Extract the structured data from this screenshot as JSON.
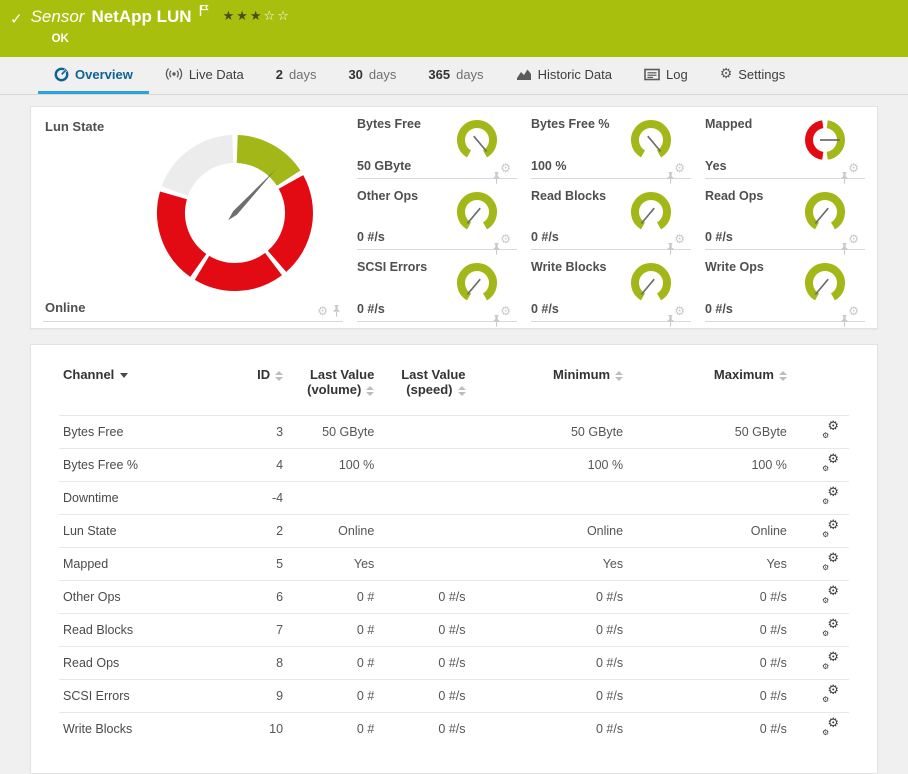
{
  "header": {
    "kind_label": "Sensor",
    "name": "NetApp LUN",
    "status": "OK",
    "rating": {
      "filled": 3,
      "total": 5
    }
  },
  "tabs": [
    {
      "label": "Overview",
      "icon": "gauge-icon",
      "active": true
    },
    {
      "label": "Live Data",
      "icon": "live-data-icon"
    },
    {
      "prefix": "2",
      "label": "days"
    },
    {
      "prefix": "30",
      "label": "days"
    },
    {
      "prefix": "365",
      "label": "days"
    },
    {
      "label": "Historic Data",
      "icon": "historic-data-icon"
    },
    {
      "label": "Log",
      "icon": "log-icon"
    },
    {
      "label": "Settings",
      "icon": "settings-gear-icon"
    }
  ],
  "main_gauge": {
    "title": "Lun State",
    "value": "Online",
    "needle_angle": 43,
    "segments": [
      {
        "from": 290,
        "to": 358,
        "color": "#ececec"
      },
      {
        "from": 2,
        "to": 57,
        "color": "#a3b818"
      },
      {
        "from": 61,
        "to": 139,
        "color": "#e30b13"
      },
      {
        "from": 143,
        "to": 211,
        "color": "#e30b13"
      },
      {
        "from": 215,
        "to": 286,
        "color": "#e30b13"
      }
    ]
  },
  "mini_gauges": [
    {
      "title": "Bytes Free",
      "value": "50 GByte",
      "style": "arc",
      "needle_angle": 140
    },
    {
      "title": "Bytes Free %",
      "value": "100 %",
      "style": "arc",
      "needle_angle": 140
    },
    {
      "title": "Mapped",
      "value": "Yes",
      "style": "split",
      "needle_angle": 90
    },
    {
      "title": "Other Ops",
      "value": "0 #/s",
      "style": "arc",
      "needle_angle": 220
    },
    {
      "title": "Read Blocks",
      "value": "0 #/s",
      "style": "arc",
      "needle_angle": 220
    },
    {
      "title": "Read Ops",
      "value": "0 #/s",
      "style": "arc",
      "needle_angle": 220
    },
    {
      "title": "SCSI Errors",
      "value": "0 #/s",
      "style": "arc",
      "needle_angle": 220
    },
    {
      "title": "Write Blocks",
      "value": "0 #/s",
      "style": "arc",
      "needle_angle": 220
    },
    {
      "title": "Write Ops",
      "value": "0 #/s",
      "style": "arc",
      "needle_angle": 220
    }
  ],
  "table": {
    "columns": [
      {
        "label": "Channel",
        "align": "left",
        "sorted": "desc"
      },
      {
        "label": "ID",
        "align": "right"
      },
      {
        "label": "Last Value (volume)",
        "align": "right"
      },
      {
        "label": "Last Value (speed)",
        "align": "right"
      },
      {
        "label": "Minimum",
        "align": "right"
      },
      {
        "label": "Maximum",
        "align": "right"
      }
    ],
    "rows": [
      [
        "Bytes Free",
        "3",
        "50 GByte",
        "",
        "50 GByte",
        "50 GByte"
      ],
      [
        "Bytes Free %",
        "4",
        "100 %",
        "",
        "100 %",
        "100 %"
      ],
      [
        "Downtime",
        "-4",
        "",
        "",
        "",
        ""
      ],
      [
        "Lun State",
        "2",
        "Online",
        "",
        "Online",
        "Online"
      ],
      [
        "Mapped",
        "5",
        "Yes",
        "",
        "Yes",
        "Yes"
      ],
      [
        "Other Ops",
        "6",
        "0 #",
        "0 #/s",
        "0 #/s",
        "0 #/s"
      ],
      [
        "Read Blocks",
        "7",
        "0 #",
        "0 #/s",
        "0 #/s",
        "0 #/s"
      ],
      [
        "Read Ops",
        "8",
        "0 #",
        "0 #/s",
        "0 #/s",
        "0 #/s"
      ],
      [
        "SCSI Errors",
        "9",
        "0 #",
        "0 #/s",
        "0 #/s",
        "0 #/s"
      ],
      [
        "Write Blocks",
        "10",
        "0 #",
        "0 #/s",
        "0 #/s",
        "0 #/s"
      ]
    ]
  },
  "colors": {
    "header_green": "#a8bf0e",
    "gauge_green": "#a3b818",
    "gauge_red": "#e30b13",
    "gauge_gray": "#ececec",
    "needle": "#6e6e6e",
    "tab_active_text": "#0d6394",
    "tab_active_underline": "#2ba3db",
    "icon_gray": "#c9c9c9"
  }
}
